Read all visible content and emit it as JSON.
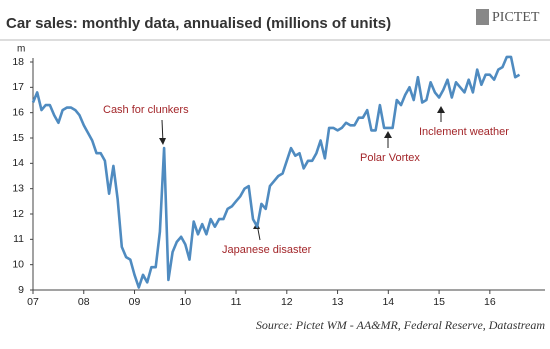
{
  "logo": "PICTET",
  "chart_data": {
    "type": "line",
    "title": "Car sales: monthly data, annualised (millions of units)",
    "y_unit": "m",
    "source": "Source: Pictet WM - AA&MR, Federal Reserve, Datastream",
    "categories": [
      "07",
      null,
      null,
      null,
      null,
      null,
      null,
      null,
      null,
      null,
      null,
      null,
      "08",
      null,
      null,
      null,
      null,
      null,
      null,
      null,
      null,
      null,
      null,
      null,
      "09",
      null,
      null,
      null,
      null,
      null,
      null,
      null,
      null,
      null,
      null,
      null,
      "10",
      null,
      null,
      null,
      null,
      null,
      null,
      null,
      null,
      null,
      null,
      null,
      "11",
      null,
      null,
      null,
      null,
      null,
      null,
      null,
      null,
      null,
      null,
      null,
      "12",
      null,
      null,
      null,
      null,
      null,
      null,
      null,
      null,
      null,
      null,
      null,
      "13",
      null,
      null,
      null,
      null,
      null,
      null,
      null,
      null,
      null,
      null,
      null,
      "14",
      null,
      null,
      null,
      null,
      null,
      null,
      null,
      null,
      null,
      null,
      null,
      "15",
      null,
      null,
      null,
      null,
      null,
      null,
      null,
      null,
      null,
      null,
      null,
      "16",
      null,
      null,
      null,
      null,
      null,
      null,
      null
    ],
    "series": [
      {
        "name": "Car sales",
        "color": "#4f8bc0",
        "values": [
          16.4,
          16.8,
          16.1,
          16.3,
          16.3,
          15.9,
          15.6,
          16.1,
          16.2,
          16.2,
          16.1,
          15.9,
          15.5,
          15.2,
          14.9,
          14.4,
          14.4,
          14.1,
          12.8,
          13.9,
          12.6,
          10.7,
          10.3,
          10.2,
          9.6,
          9.1,
          9.6,
          9.3,
          9.9,
          9.9,
          11.3,
          14.6,
          9.4,
          10.5,
          10.9,
          11.1,
          10.8,
          10.2,
          11.7,
          11.2,
          11.6,
          11.2,
          11.8,
          11.5,
          11.8,
          11.8,
          12.2,
          12.3,
          12.5,
          12.7,
          13.0,
          13.1,
          11.8,
          11.5,
          12.4,
          12.2,
          13.1,
          13.3,
          13.5,
          13.6,
          14.1,
          14.6,
          14.3,
          14.4,
          13.8,
          14.1,
          14.1,
          14.4,
          14.9,
          14.2,
          15.4,
          15.4,
          15.3,
          15.4,
          15.6,
          15.5,
          15.5,
          15.8,
          15.8,
          16.1,
          15.3,
          15.3,
          16.3,
          15.4,
          15.4,
          15.4,
          16.5,
          16.3,
          16.7,
          17.0,
          16.5,
          17.4,
          16.4,
          16.5,
          17.2,
          16.8,
          16.6,
          16.9,
          17.3,
          16.6,
          17.2,
          17.0,
          16.8,
          17.3,
          16.8,
          17.7,
          17.1,
          17.5,
          17.5,
          17.3,
          17.7,
          17.8,
          18.2,
          18.2,
          17.4,
          17.5
        ]
      }
    ],
    "ylim": [
      9,
      18
    ],
    "yticks": [
      9,
      10,
      11,
      12,
      13,
      14,
      15,
      16,
      17,
      18
    ],
    "annotations": [
      "Cash for clunkers",
      "Japanese disaster",
      "Polar Vortex",
      "Inclement weather"
    ]
  }
}
